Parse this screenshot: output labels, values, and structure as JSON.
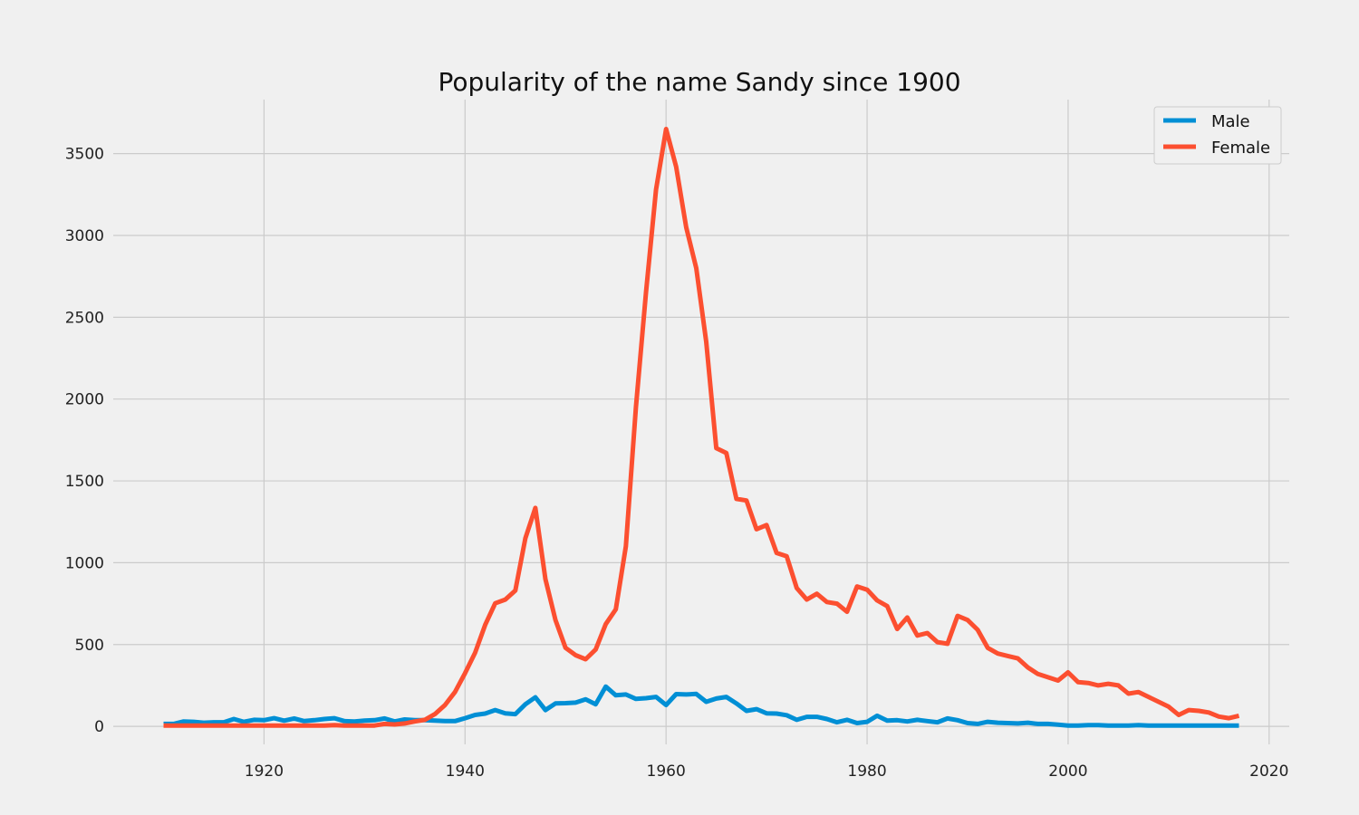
{
  "chart_data": {
    "type": "line",
    "title": "Popularity of the name Sandy since 1900",
    "xlabel": "",
    "ylabel": "",
    "xlim": [
      1905,
      2022
    ],
    "ylim": [
      -110,
      3830
    ],
    "xticks": [
      1920,
      1940,
      1960,
      1980,
      2000,
      2020
    ],
    "yticks": [
      0,
      500,
      1000,
      1500,
      2000,
      2500,
      3000,
      3500
    ],
    "grid": true,
    "legend_position": "top-right",
    "x": [
      1910,
      1911,
      1912,
      1913,
      1914,
      1915,
      1916,
      1917,
      1918,
      1919,
      1920,
      1921,
      1922,
      1923,
      1924,
      1925,
      1926,
      1927,
      1928,
      1929,
      1930,
      1931,
      1932,
      1933,
      1934,
      1935,
      1936,
      1937,
      1938,
      1939,
      1940,
      1941,
      1942,
      1943,
      1944,
      1945,
      1946,
      1947,
      1948,
      1949,
      1950,
      1951,
      1952,
      1953,
      1954,
      1955,
      1956,
      1957,
      1958,
      1959,
      1960,
      1961,
      1962,
      1963,
      1964,
      1965,
      1966,
      1967,
      1968,
      1969,
      1970,
      1971,
      1972,
      1973,
      1974,
      1975,
      1976,
      1977,
      1978,
      1979,
      1980,
      1981,
      1982,
      1983,
      1984,
      1985,
      1986,
      1987,
      1988,
      1989,
      1990,
      1991,
      1992,
      1993,
      1994,
      1995,
      1996,
      1997,
      1998,
      1999,
      2000,
      2001,
      2002,
      2003,
      2004,
      2005,
      2006,
      2007,
      2008,
      2009,
      2010,
      2011,
      2012,
      2013,
      2014,
      2015,
      2016,
      2017
    ],
    "series": [
      {
        "name": "Male",
        "color": "#008fd5",
        "values": [
          15,
          15,
          30,
          28,
          22,
          25,
          25,
          45,
          28,
          40,
          38,
          50,
          35,
          48,
          32,
          38,
          45,
          50,
          32,
          30,
          35,
          38,
          48,
          30,
          42,
          38,
          38,
          35,
          32,
          32,
          50,
          70,
          78,
          100,
          80,
          75,
          135,
          178,
          100,
          140,
          142,
          145,
          165,
          135,
          243,
          190,
          195,
          168,
          172,
          180,
          130,
          197,
          195,
          198,
          150,
          170,
          180,
          140,
          95,
          105,
          80,
          78,
          68,
          40,
          58,
          58,
          45,
          25,
          40,
          20,
          28,
          65,
          35,
          38,
          30,
          40,
          32,
          25,
          48,
          38,
          20,
          15,
          28,
          22,
          20,
          18,
          22,
          15,
          15,
          10,
          5,
          5,
          8,
          8,
          5,
          5,
          5,
          8,
          5,
          5,
          5,
          5,
          5,
          5,
          5,
          5,
          5,
          5
        ]
      },
      {
        "name": "Female",
        "color": "#fc4f30",
        "values": [
          5,
          5,
          5,
          5,
          5,
          5,
          5,
          5,
          5,
          5,
          5,
          5,
          5,
          5,
          5,
          5,
          5,
          8,
          5,
          5,
          5,
          5,
          15,
          12,
          18,
          30,
          40,
          75,
          130,
          210,
          325,
          450,
          620,
          752,
          775,
          830,
          1150,
          1335,
          900,
          650,
          480,
          435,
          410,
          470,
          625,
          715,
          1100,
          1950,
          2650,
          3280,
          3650,
          3420,
          3050,
          2800,
          2350,
          1700,
          1670,
          1390,
          1380,
          1205,
          1230,
          1060,
          1040,
          845,
          775,
          810,
          760,
          750,
          700,
          855,
          835,
          770,
          735,
          595,
          665,
          555,
          570,
          515,
          505,
          675,
          650,
          590,
          480,
          445,
          430,
          415,
          360,
          320,
          300,
          280,
          330,
          270,
          265,
          250,
          260,
          250,
          200,
          210,
          180,
          150,
          120,
          70,
          100,
          95,
          85,
          60,
          50,
          65
        ]
      }
    ]
  }
}
